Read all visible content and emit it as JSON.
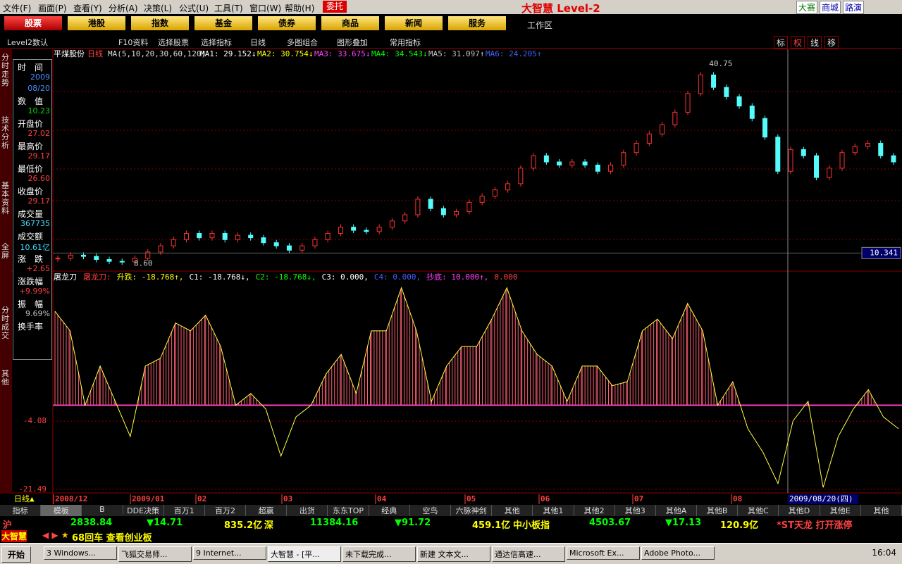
{
  "menu": [
    "文件(F)",
    "画面(P)",
    "查看(Y)",
    "分析(A)",
    "决策(L)",
    "公式(U)",
    "工具(T)",
    "窗口(W)",
    "帮助(H)"
  ],
  "entrust": "委托",
  "app_title": "大智慧 Level-2",
  "top_links": [
    "大赛",
    "商城",
    "路演"
  ],
  "nav_buttons": [
    "股票",
    "港股",
    "指数",
    "基金",
    "债券",
    "商品",
    "新闻",
    "服务"
  ],
  "workspace": "工作区",
  "toolbar": [
    "Level2数认",
    "F10资料",
    "选择股票",
    "选择指标",
    "日线",
    "多图组合",
    "图形叠加",
    "常用指标"
  ],
  "toolbar_right": [
    "标",
    "权",
    "线",
    "移"
  ],
  "side_tabs": [
    "分时走势",
    "技术分析",
    "基本资料",
    "全屏",
    "分时成交",
    "其他"
  ],
  "info_panel": [
    {
      "label": "时　间",
      "values": [
        "2009",
        "08/20"
      ],
      "color": "#4a8cff"
    },
    {
      "label": "数　值",
      "values": [
        "10.23"
      ],
      "color": "#00e000"
    },
    {
      "label": "开盘价",
      "values": [
        "27.02"
      ],
      "color": "#ff4040"
    },
    {
      "label": "最高价",
      "values": [
        "29.17"
      ],
      "color": "#ff4040"
    },
    {
      "label": "最低价",
      "values": [
        "26.60"
      ],
      "color": "#ff4040"
    },
    {
      "label": "收盘价",
      "values": [
        "29.17"
      ],
      "color": "#ff4040"
    },
    {
      "label": "成交量",
      "values": [
        "367735"
      ],
      "color": "#40e0ff"
    },
    {
      "label": "成交额",
      "values": [
        "10.61亿"
      ],
      "color": "#40e0ff"
    },
    {
      "label": "涨　跌",
      "values": [
        "+2.65"
      ],
      "color": "#ff4040"
    },
    {
      "label": "涨跌幅",
      "values": [
        "+9.99%"
      ],
      "color": "#ff4040"
    },
    {
      "label": "振　幅",
      "values": [
        "9.69%"
      ],
      "color": "#c0c0c0"
    },
    {
      "label": "换手率",
      "values": [],
      "color": "#c0c0c0"
    }
  ],
  "price_chart": {
    "stock": "平煤股份",
    "period": "日线",
    "ma_params": "MA(5,10,20,30,60,120)",
    "ma_readouts": [
      {
        "text": "MA1: 29.152↓",
        "color": "#ffffff"
      },
      {
        "text": "MA2: 30.754↓",
        "color": "#ffff00"
      },
      {
        "text": "MA3: 33.675↓",
        "color": "#ff40ff"
      },
      {
        "text": "MA4: 34.543↓",
        "color": "#00ff00"
      },
      {
        "text": "MA5: 31.097↑",
        "color": "#c0c0c0"
      },
      {
        "text": "MA6: 24.205↑",
        "color": "#4060ff"
      }
    ],
    "ylim": [
      8,
      42
    ],
    "high": 40.75,
    "low": {
      "value": 8.6,
      "label": "8.60"
    },
    "cursor_value": 10.341,
    "closes": [
      9.5,
      10,
      9.8,
      9.3,
      9.0,
      8.9,
      9.5,
      10.5,
      11.5,
      12.5,
      13.5,
      12.8,
      13.5,
      12.5,
      13.2,
      12.8,
      12.0,
      11.5,
      10.8,
      11.5,
      12.5,
      13.5,
      14.5,
      14.0,
      13.8,
      14.5,
      15.5,
      16.5,
      19.0,
      17.5,
      16.5,
      17.0,
      18.5,
      19.5,
      20.5,
      21.5,
      24.0,
      26.0,
      25.0,
      24.5,
      25.0,
      24.5,
      23.5,
      24.5,
      26.5,
      28.0,
      29.5,
      31.0,
      33.0,
      36.0,
      39.0,
      37.0,
      35.5,
      34.0,
      32.0,
      29.0,
      23.5,
      27.0,
      26.0,
      22.5,
      24.0,
      26.5,
      27.5,
      28.0,
      26.0,
      25.0
    ]
  },
  "indicator": {
    "name": "屠龙刀",
    "readouts": [
      {
        "text": "屠龙刀:",
        "color": "#ff4040"
      },
      {
        "text": "升跌: -18.768↑,",
        "color": "#ffff00"
      },
      {
        "text": "C1: -18.768↓,",
        "color": "#ffffff"
      },
      {
        "text": "C2: -18.768↓,",
        "color": "#00ff00"
      },
      {
        "text": "C3: 0.000,",
        "color": "#ffffff"
      },
      {
        "text": "C4: 0.000,",
        "color": "#4060ff"
      },
      {
        "text": "抄底: 10.000↑,",
        "color": "#ff40ff"
      },
      {
        "text": "0.000",
        "color": "#ff4040"
      }
    ],
    "ylim": [
      -21.49,
      31.2
    ],
    "yticks": [
      -21.49,
      -4.08
    ],
    "values": [
      24,
      19,
      0,
      10,
      1,
      -8,
      10,
      12,
      21,
      19,
      23,
      15,
      0,
      3,
      -1,
      -13,
      -3,
      0,
      8,
      13,
      3,
      19,
      19,
      30,
      19,
      1,
      10,
      15,
      15,
      22,
      30,
      19,
      13,
      10,
      1,
      10,
      10,
      5,
      6,
      19,
      22,
      17,
      26,
      19,
      0,
      6,
      -6,
      -12,
      -20,
      -4,
      1,
      -21,
      -8,
      -1,
      4,
      -3,
      -6
    ]
  },
  "x_axis": {
    "period": "日线▲",
    "labels": [
      "2008/12",
      "2009/01",
      "02",
      "03",
      "04",
      "05",
      "06",
      "07",
      "08"
    ],
    "cursor": "2009/08/20(四)"
  },
  "bottom_tabs": [
    "指标",
    "模板",
    "B",
    "DDE决策",
    "百万1",
    "百万2",
    "超赢",
    "出货",
    "东东TOP",
    "经典",
    "空鸟",
    "六脉神剑",
    "其他",
    "其他1",
    "其他2",
    "其他3",
    "其他A",
    "其他B",
    "其他C",
    "其他D",
    "其他E",
    "其他"
  ],
  "ticker": [
    {
      "text": "沪",
      "color": "#ff4040"
    },
    {
      "text": "2838.84",
      "color": "#00ff00"
    },
    {
      "text": "▼14.71",
      "color": "#00ff00"
    },
    {
      "text": "835.2亿",
      "color": "#ffff00"
    },
    {
      "text": "深",
      "color": "#ffff00"
    },
    {
      "text": "11384.16",
      "color": "#00ff00"
    },
    {
      "text": "▼91.72",
      "color": "#00ff00"
    },
    {
      "text": "459.1亿",
      "color": "#ffff00"
    },
    {
      "text": "中小板指",
      "color": "#ffff00"
    },
    {
      "text": "4503.67",
      "color": "#00ff00"
    },
    {
      "text": "▼17.13",
      "color": "#00ff00"
    },
    {
      "text": "120.9亿",
      "color": "#ffff00"
    },
    {
      "text": "*ST天龙 打开涨停",
      "color": "#ff4040"
    }
  ],
  "status": {
    "brand": "大智慧",
    "message": "68回车 查看创业板"
  },
  "taskbar": {
    "start": "开始",
    "items": [
      "3 Windows...",
      "飞狐交易师...",
      "9 Internet...",
      "大智慧 - [平...",
      "未下载完成...",
      "新建 文本文...",
      "通达信高速...",
      "Microsoft Ex...",
      "Adobe Photo..."
    ],
    "clock": "16:04"
  }
}
